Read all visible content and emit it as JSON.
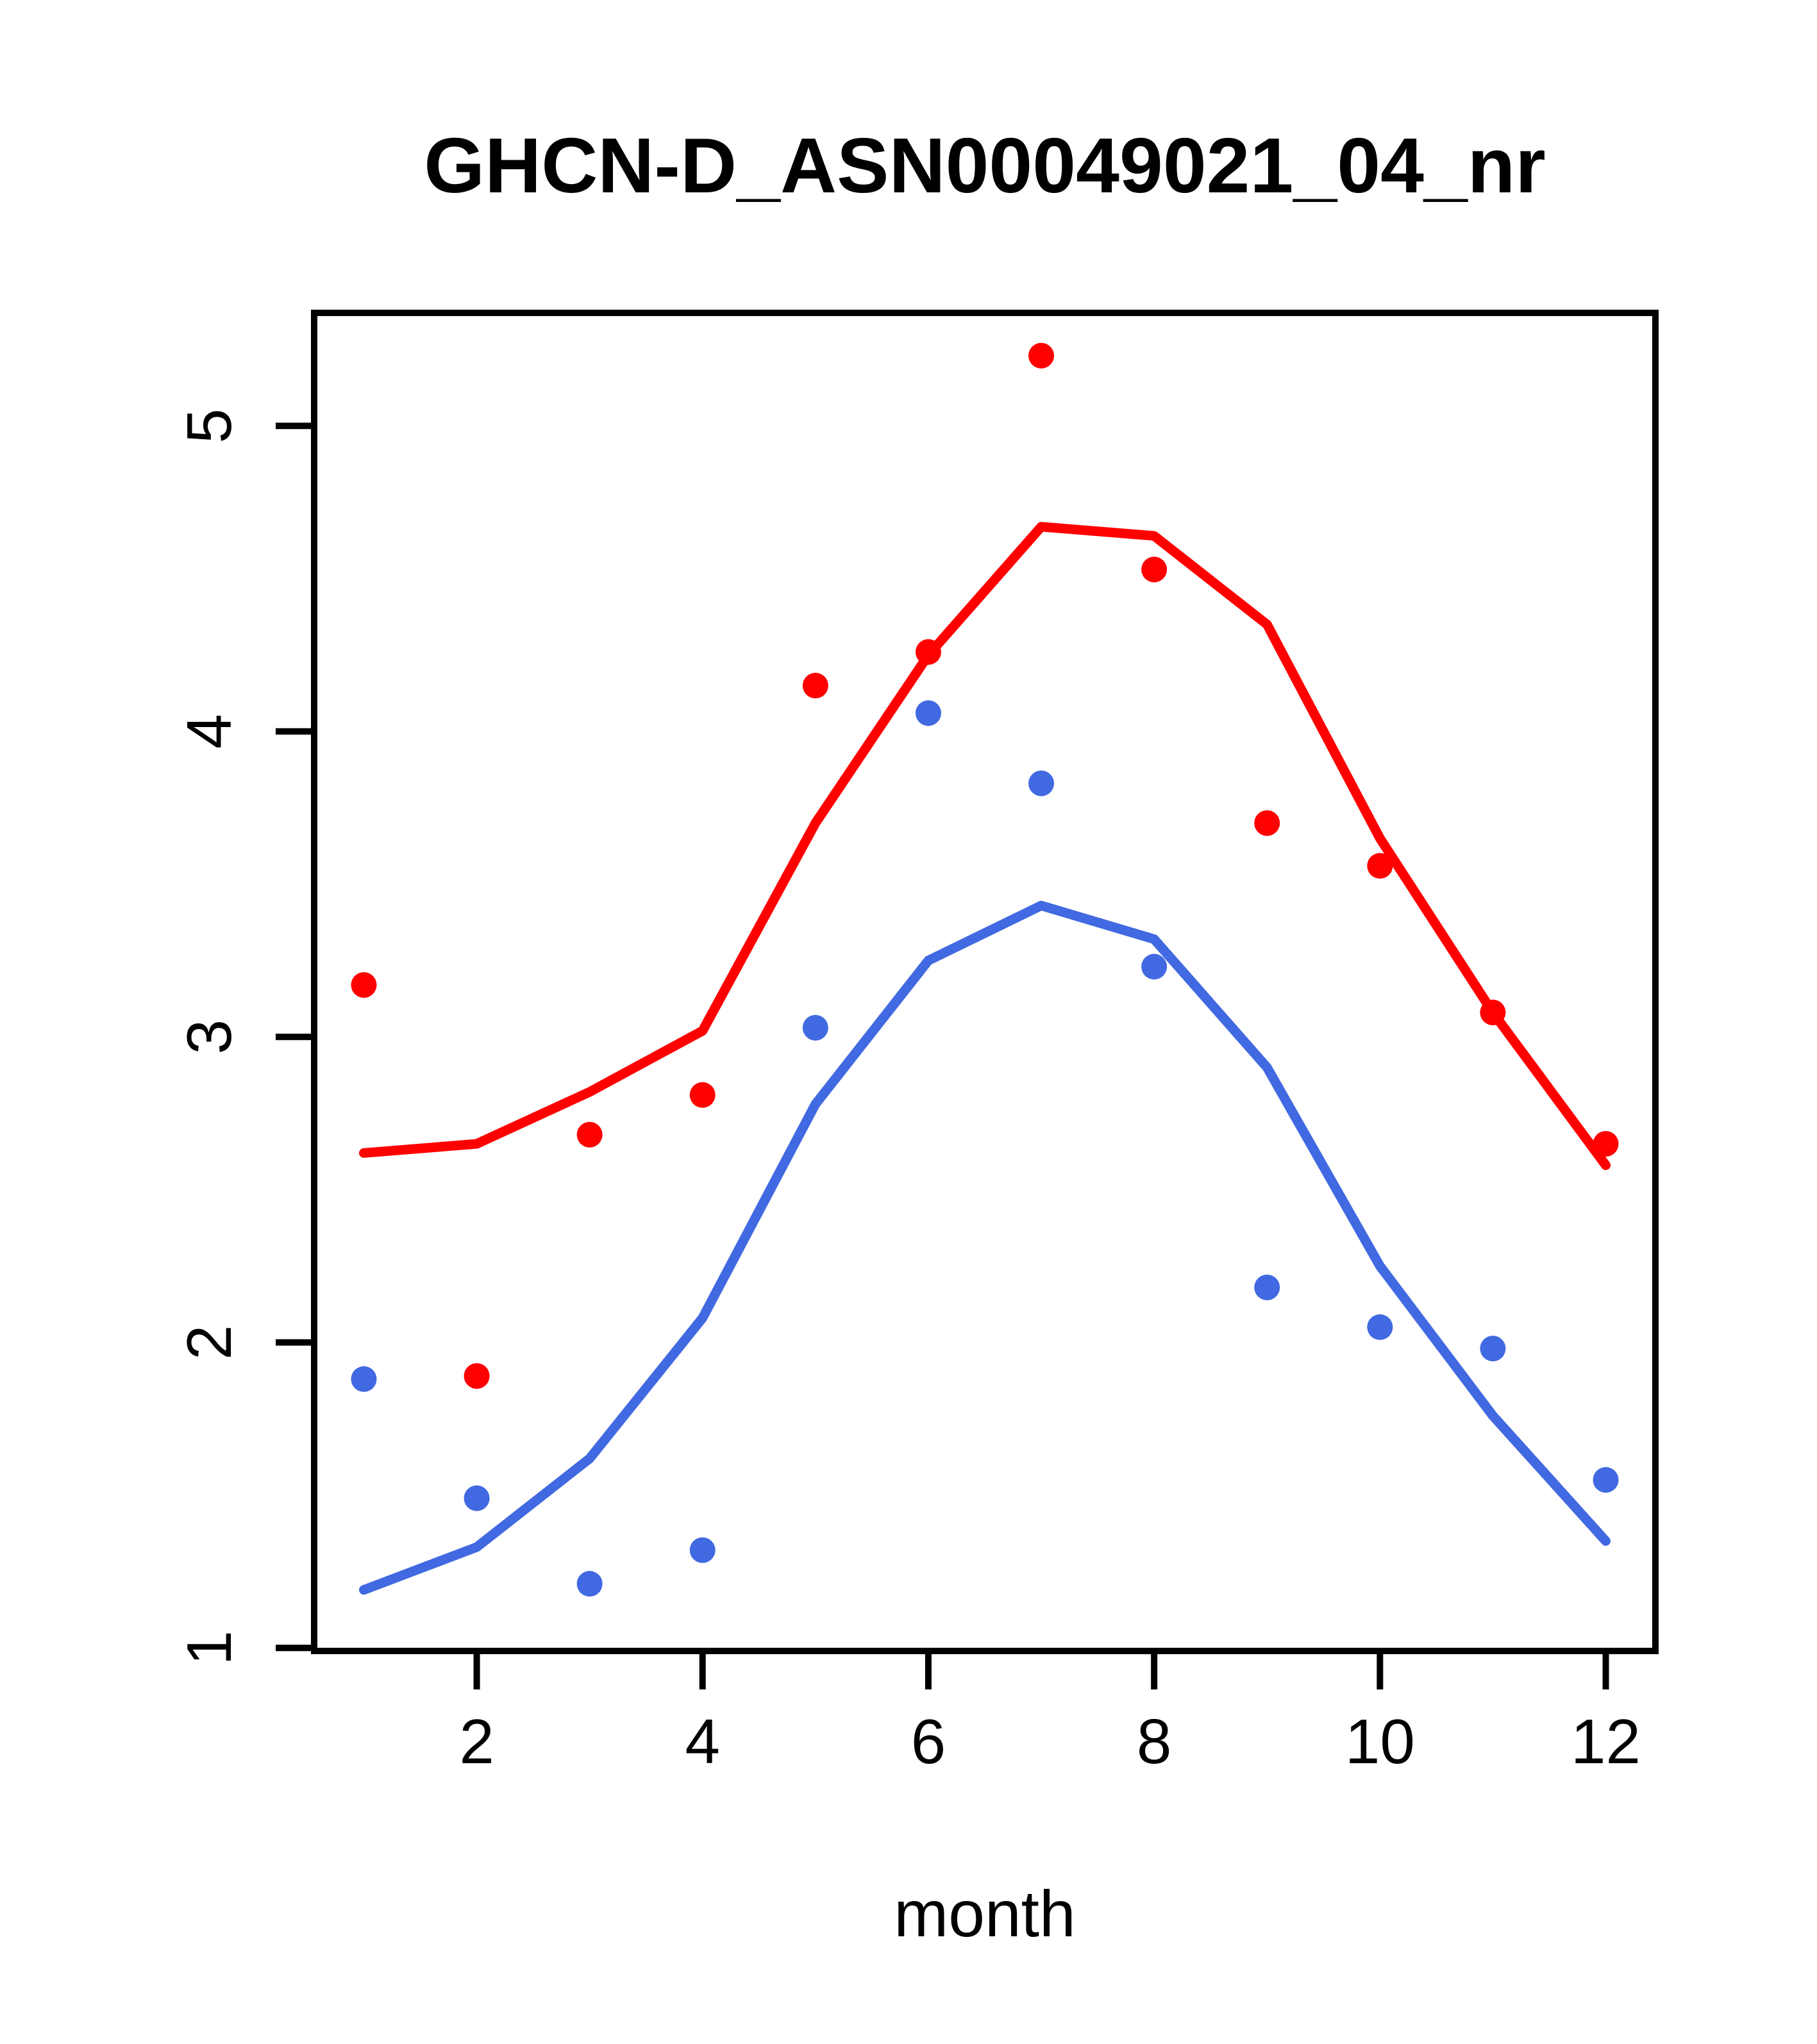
{
  "title": "GHCN-D_ASN00049021_04_nr",
  "colors": {
    "red": "#FF0000",
    "blue": "#4169E1",
    "axis": "#000000",
    "text": "#000000",
    "background": "#FFFFFF"
  },
  "x_axis": {
    "label": "month",
    "ticks": [
      "2",
      "4",
      "6",
      "8",
      "10",
      "12"
    ]
  },
  "y_axis": {
    "label": "",
    "ticks": [
      "1",
      "2",
      "3",
      "4",
      "5"
    ]
  },
  "chart_data": {
    "type": "scatter",
    "title": "GHCN-D_ASN00049021_04_nr",
    "xlabel": "month",
    "ylabel": "",
    "x": [
      1,
      2,
      3,
      4,
      5,
      6,
      7,
      8,
      9,
      10,
      11,
      12
    ],
    "xlim": [
      0.56,
      12.44
    ],
    "ylim": [
      0.99,
      5.37
    ],
    "x_ticks": [
      2,
      4,
      6,
      8,
      10,
      12
    ],
    "y_ticks": [
      1,
      2,
      3,
      4,
      5
    ],
    "grid": false,
    "legend_position": "none",
    "series": [
      {
        "name": "red-points",
        "kind": "points",
        "color_key": "red",
        "values": [
          3.17,
          1.89,
          2.68,
          2.81,
          4.15,
          4.26,
          5.23,
          4.53,
          3.7,
          3.56,
          3.08,
          2.65
        ]
      },
      {
        "name": "blue-points",
        "kind": "points",
        "color_key": "blue",
        "values": [
          1.88,
          1.49,
          1.21,
          1.32,
          3.03,
          4.06,
          3.83,
          3.23,
          2.18,
          2.05,
          1.98,
          1.55
        ]
      },
      {
        "name": "red-trend-line",
        "kind": "line",
        "color_key": "red",
        "values": [
          2.62,
          2.65,
          2.82,
          3.02,
          3.7,
          4.25,
          4.67,
          4.64,
          4.35,
          3.65,
          3.08,
          2.58
        ]
      },
      {
        "name": "blue-trend-line",
        "kind": "line",
        "color_key": "blue",
        "values": [
          1.19,
          1.33,
          1.62,
          2.08,
          2.78,
          3.25,
          3.43,
          3.32,
          2.9,
          2.25,
          1.76,
          1.35
        ]
      }
    ]
  }
}
